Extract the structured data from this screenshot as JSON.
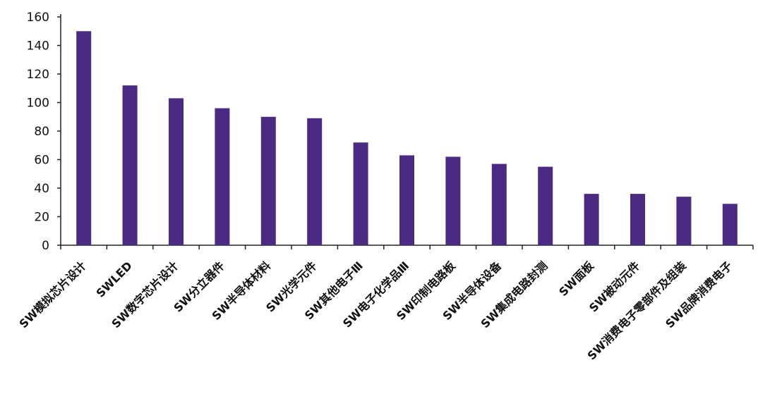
{
  "chart_data": {
    "type": "bar",
    "title": "",
    "xlabel": "",
    "ylabel": "",
    "ylim": [
      0,
      160
    ],
    "yticks": [
      0,
      20,
      40,
      60,
      80,
      100,
      120,
      140,
      160
    ],
    "grid": false,
    "legend": "none",
    "bar_color": "#4b2a84",
    "categories": [
      "SW模拟芯片设计",
      "SWLED",
      "SW数字芯片设计",
      "SW分立器件",
      "SW半导体材料",
      "SW光学元件",
      "SW其他电子Ⅲ",
      "SW电子化学品Ⅲ",
      "SW印制电路板",
      "SW半导体设备",
      "SW集成电路封测",
      "SW面板",
      "SW被动元件",
      "SW消费电子零部件及组装",
      "SW品牌消费电子"
    ],
    "values": [
      150,
      112,
      103,
      96,
      90,
      89,
      72,
      63,
      62,
      57,
      55,
      36,
      36,
      34,
      29
    ]
  }
}
